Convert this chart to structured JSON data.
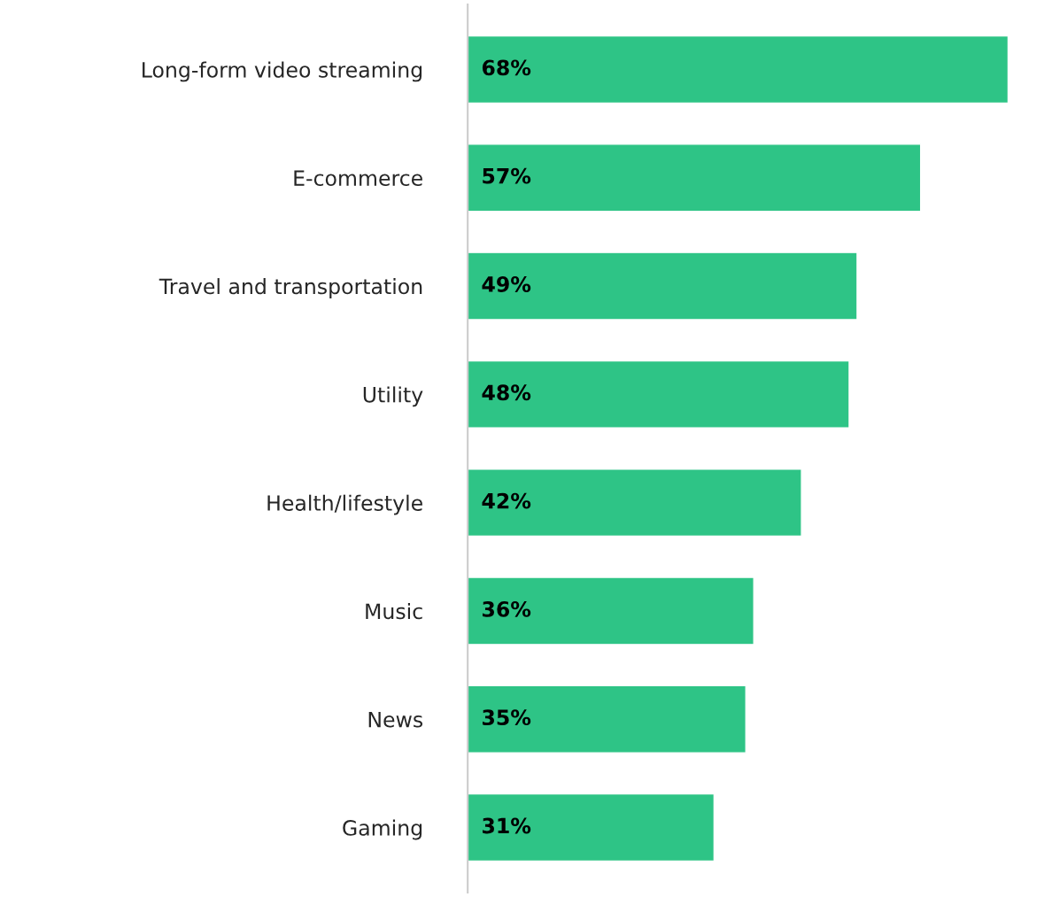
{
  "chart_data": {
    "type": "bar",
    "orientation": "horizontal",
    "categories": [
      "Long-form video streaming",
      "E-commerce",
      "Travel and transportation",
      "Utility",
      "Health/lifestyle",
      "Music",
      "News",
      "Gaming"
    ],
    "values": [
      68,
      57,
      49,
      48,
      42,
      36,
      35,
      31
    ],
    "value_labels": [
      "68%",
      "57%",
      "49%",
      "48%",
      "42%",
      "36%",
      "35%",
      "31%"
    ],
    "color": "#2ec486",
    "grid": false,
    "legend": false,
    "tick_labels": "y"
  }
}
